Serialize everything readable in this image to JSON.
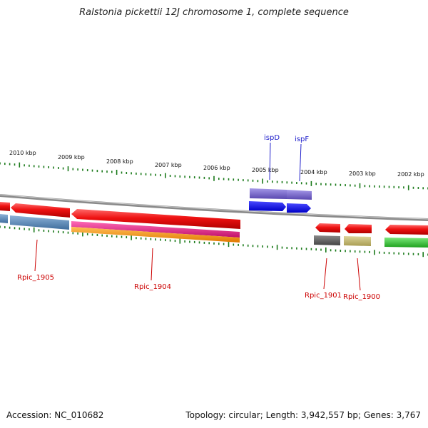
{
  "title": "Ralstonia pickettii 12J chromosome 1, complete sequence",
  "footer": {
    "accession": "Accession: NC_010682",
    "topology": "Topology: circular; Length: 3,942,557 bp; Genes: 3,767"
  },
  "ruler_labels": [
    "2010 kbp",
    "2009 kbp",
    "2008 kbp",
    "2007 kbp",
    "2006 kbp",
    "2005 kbp",
    "2004 kbp",
    "2003 kbp",
    "2002 kbp"
  ],
  "gene_labels": {
    "ispD": "ispD",
    "ispF": "ispF",
    "rpic_1905": "Rpic_1905",
    "rpic_1904": "Rpic_1904",
    "rpic_1901": "Rpic_1901",
    "rpic_1900": "Rpic_1900"
  },
  "colors": {
    "cds_red": "#ee1111",
    "ispD_feature": "#7a66cc",
    "ispF_feature": "#1010ee",
    "rpic_1905_feature": "#4f7fb0",
    "rpic_1904_magenta": "#e0187f",
    "rpic_1904_orange": "#f5920a",
    "rpic_1901_feature": "#666666",
    "rpic_1900_feature": "#c2b870",
    "green_feature": "#33cc33",
    "tick_color": "#1a7a1a"
  }
}
